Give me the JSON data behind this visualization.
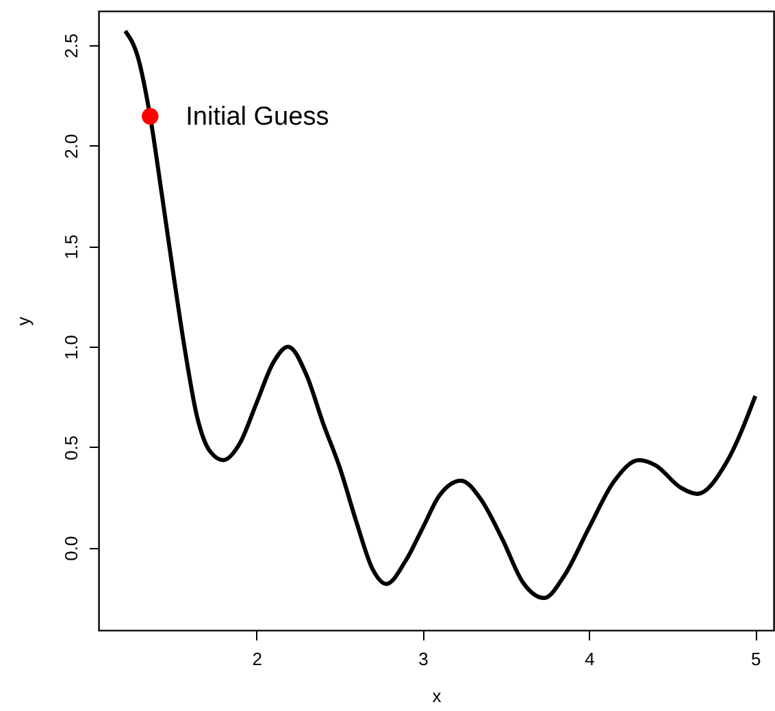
{
  "chart_data": {
    "type": "line",
    "xlabel": "x",
    "ylabel": "y",
    "xlim": [
      1.05,
      5.11
    ],
    "ylim": [
      -0.41,
      2.67
    ],
    "xticks": [
      2,
      3,
      4,
      5
    ],
    "yticks": [
      {
        "value": 0,
        "label": "0.0"
      },
      0.5,
      {
        "value": 1,
        "label": "1.0"
      },
      1.5,
      {
        "value": 2,
        "label": "2.0"
      },
      2.5
    ],
    "grid": false,
    "series": [
      {
        "color": "#000000",
        "marker": "none",
        "line_style": "solid",
        "x": [
          1.21,
          1.29,
          1.36,
          1.43,
          1.5,
          1.57,
          1.64,
          1.72,
          1.8,
          1.9,
          2.0,
          2.1,
          2.19,
          2.3,
          2.4,
          2.5,
          2.6,
          2.7,
          2.78,
          2.9,
          3.0,
          3.1,
          3.23,
          3.35,
          3.48,
          3.6,
          3.73,
          3.85,
          4.0,
          4.15,
          4.3,
          4.4,
          4.55,
          4.65,
          4.83,
          5.0
        ],
        "values": [
          2.57,
          2.43,
          2.146,
          1.76,
          1.36,
          0.98,
          0.66,
          0.48,
          0.436,
          0.52,
          0.72,
          0.92,
          1.0,
          0.86,
          0.62,
          0.4,
          0.13,
          -0.11,
          -0.18,
          -0.06,
          0.1,
          0.26,
          0.334,
          0.24,
          0.04,
          -0.17,
          -0.25,
          -0.14,
          0.1,
          0.33,
          0.436,
          0.41,
          0.3,
          0.268,
          0.43,
          0.755
        ]
      },
      {
        "type": "scatter",
        "color": "#ff0000",
        "marker": "circle",
        "x": [
          1.36
        ],
        "values": [
          2.146
        ]
      }
    ],
    "annotations": [
      {
        "text": "Initial Guess",
        "x": 1.36,
        "y": 2.146
      }
    ]
  }
}
